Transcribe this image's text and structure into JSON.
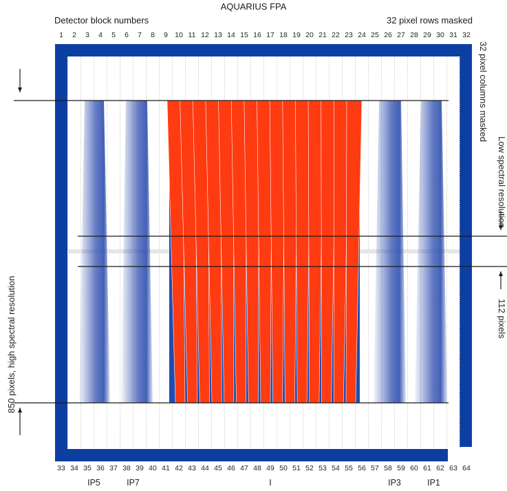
{
  "title": "AQUARIUS FPA",
  "subtitle_left": "Detector block numbers",
  "subtitle_right": "32 pixel rows masked",
  "label_left_vertical": "850 pixels, high spectral resolution",
  "label_right_top_vertical": "32 pixel columns masked",
  "label_right_mid_vertical": "Low spectral resolution",
  "label_right_bottom_vertical": "112 pixels",
  "top_block_numbers": [
    "1",
    "2",
    "3",
    "4",
    "5",
    "6",
    "7",
    "8",
    "9",
    "10",
    "11",
    "12",
    "13",
    "14",
    "15",
    "16",
    "17",
    "18",
    "19",
    "20",
    "21",
    "22",
    "23",
    "24",
    "25",
    "26",
    "27",
    "28",
    "29",
    "30",
    "31",
    "32"
  ],
  "bottom_block_numbers": [
    "33",
    "34",
    "35",
    "36",
    "37",
    "38",
    "39",
    "40",
    "41",
    "42",
    "43",
    "44",
    "45",
    "46",
    "47",
    "48",
    "49",
    "50",
    "51",
    "52",
    "53",
    "54",
    "55",
    "56",
    "57",
    "58",
    "59",
    "60",
    "61",
    "62",
    "63",
    "64"
  ],
  "ip_labels": [
    {
      "text": "IP5",
      "block": "35.5"
    },
    {
      "text": "IP7",
      "block": "38.5"
    },
    {
      "text": "I",
      "block": "49"
    },
    {
      "text": "IP3",
      "block": "58.5"
    },
    {
      "text": "IP1",
      "block": "61.5"
    }
  ],
  "colors": {
    "frame_blue": "#0d3fa3",
    "stripe_red": "#ff3b12",
    "stripe_blue": "#1e4db0",
    "ip_blue": "#2f4fb0",
    "column_dots": "#b8b8b8",
    "lines": "#1a1a1a"
  }
}
